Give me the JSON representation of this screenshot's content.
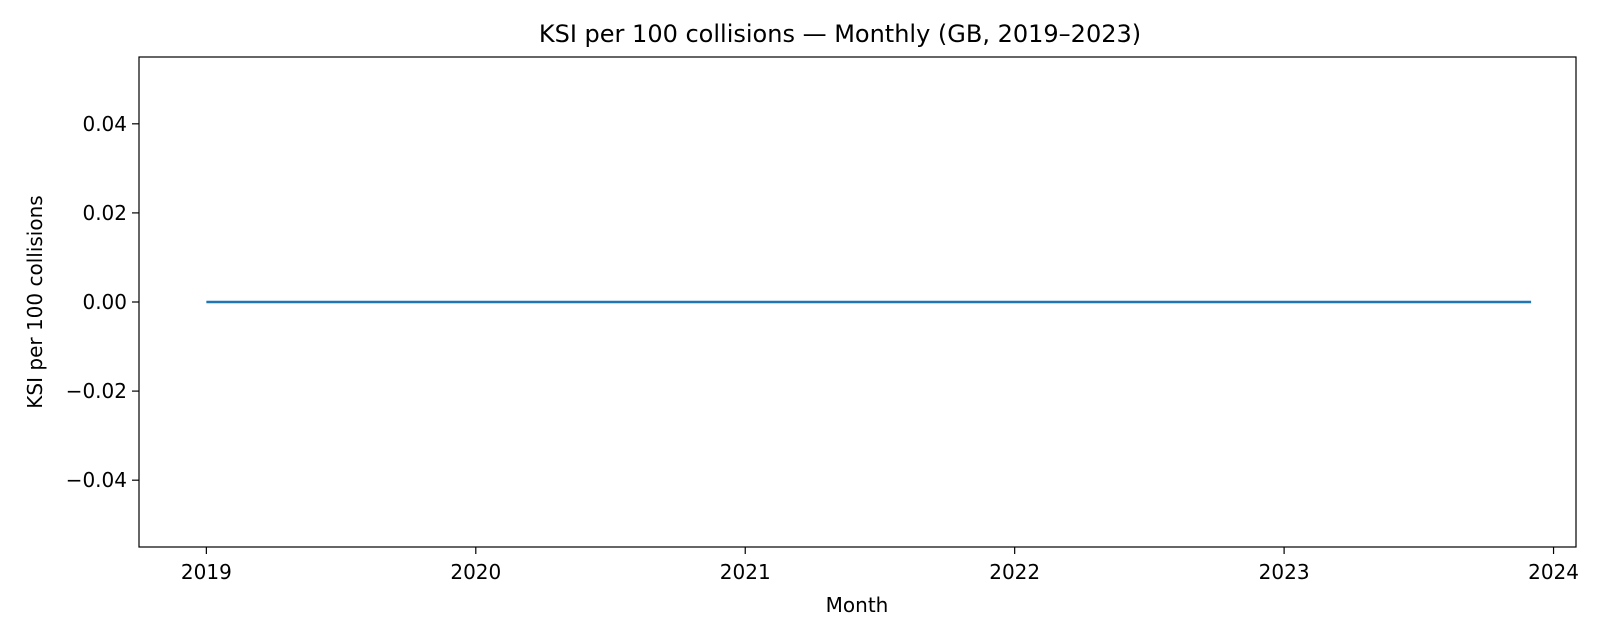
{
  "chart_data": {
    "type": "line",
    "title": "KSI per 100 collisions — Monthly (GB, 2019–2023)",
    "xlabel": "Month",
    "ylabel": "KSI per 100 collisions",
    "x_tick_labels": [
      "2019",
      "2020",
      "2021",
      "2022",
      "2023",
      "2024"
    ],
    "y_tick_labels": [
      "−0.04",
      "−0.02",
      "0.00",
      "0.02",
      "0.04"
    ],
    "y_ticks": [
      -0.04,
      -0.02,
      0.0,
      0.02,
      0.04
    ],
    "xlim": [
      "2018-10",
      "2024-02"
    ],
    "ylim": [
      -0.055,
      0.055
    ],
    "grid": false,
    "series": [
      {
        "color": "#1f77b4",
        "x": [
          "2019-01",
          "2019-02",
          "2019-03",
          "2019-04",
          "2019-05",
          "2019-06",
          "2019-07",
          "2019-08",
          "2019-09",
          "2019-10",
          "2019-11",
          "2019-12",
          "2020-01",
          "2020-02",
          "2020-03",
          "2020-04",
          "2020-05",
          "2020-06",
          "2020-07",
          "2020-08",
          "2020-09",
          "2020-10",
          "2020-11",
          "2020-12",
          "2021-01",
          "2021-02",
          "2021-03",
          "2021-04",
          "2021-05",
          "2021-06",
          "2021-07",
          "2021-08",
          "2021-09",
          "2021-10",
          "2021-11",
          "2021-12",
          "2022-01",
          "2022-02",
          "2022-03",
          "2022-04",
          "2022-05",
          "2022-06",
          "2022-07",
          "2022-08",
          "2022-09",
          "2022-10",
          "2022-11",
          "2022-12",
          "2023-01",
          "2023-02",
          "2023-03",
          "2023-04",
          "2023-05",
          "2023-06",
          "2023-07",
          "2023-08",
          "2023-09",
          "2023-10",
          "2023-11",
          "2023-12"
        ],
        "values": [
          0,
          0,
          0,
          0,
          0,
          0,
          0,
          0,
          0,
          0,
          0,
          0,
          0,
          0,
          0,
          0,
          0,
          0,
          0,
          0,
          0,
          0,
          0,
          0,
          0,
          0,
          0,
          0,
          0,
          0,
          0,
          0,
          0,
          0,
          0,
          0,
          0,
          0,
          0,
          0,
          0,
          0,
          0,
          0,
          0,
          0,
          0,
          0,
          0,
          0,
          0,
          0,
          0,
          0,
          0,
          0,
          0,
          0,
          0,
          0
        ]
      }
    ]
  }
}
